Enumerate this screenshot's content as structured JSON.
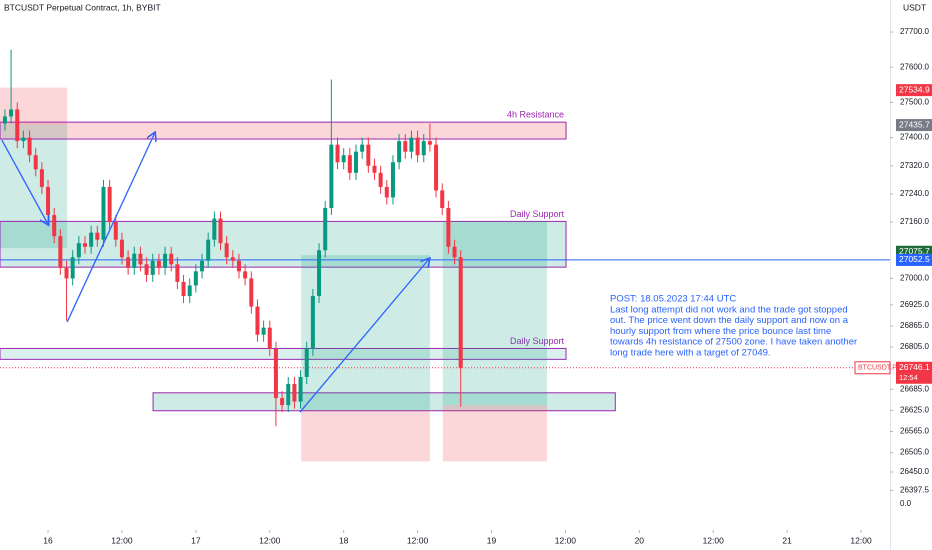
{
  "chart_data": {
    "type": "candlestick",
    "title": "BTCUSDT Perpetual Contract, 1h, BYBIT",
    "currency": "USDT",
    "up_color": "#089981",
    "down_color": "#f23645",
    "grid": false,
    "xlim": [
      16.2,
      160.7
    ],
    "ylim": [
      26342,
      27791
    ],
    "xticks": [
      {
        "value": 24,
        "label": "16"
      },
      {
        "value": 36,
        "label": "12:00"
      },
      {
        "value": 48,
        "label": "17"
      },
      {
        "value": 60,
        "label": "12:00"
      },
      {
        "value": 72,
        "label": "18"
      },
      {
        "value": 84,
        "label": "12:00"
      },
      {
        "value": 96,
        "label": "19"
      },
      {
        "value": 108,
        "label": "12:00"
      },
      {
        "value": 120,
        "label": "20"
      },
      {
        "value": 132,
        "label": "12:00"
      },
      {
        "value": 144,
        "label": "21"
      },
      {
        "value": 156,
        "label": "12:00"
      }
    ],
    "yticks": [
      {
        "value": 27700,
        "label": "27700.0"
      },
      {
        "value": 27600,
        "label": "27600.0"
      },
      {
        "value": 27500,
        "label": "27500.0"
      },
      {
        "value": 27400,
        "label": "27400.0"
      },
      {
        "value": 27320,
        "label": "27320.0"
      },
      {
        "value": 27240,
        "label": "27240.0"
      },
      {
        "value": 27160,
        "label": "27160.0"
      },
      {
        "value": 27000,
        "label": "27000.0"
      },
      {
        "value": 26925,
        "label": "26925.0"
      },
      {
        "value": 26865,
        "label": "26865.0"
      },
      {
        "value": 26805,
        "label": "26805.0"
      },
      {
        "value": 26685,
        "label": "26685.0"
      },
      {
        "value": 26625,
        "label": "26625.0"
      },
      {
        "value": 26565,
        "label": "26565.0"
      },
      {
        "value": 26505,
        "label": "26505.0"
      },
      {
        "value": 26450,
        "label": "26450.0"
      },
      26397.5
    ],
    "volume_tick_label": "0.0",
    "x": [
      17,
      18,
      19,
      20,
      21,
      22,
      23,
      24,
      25,
      26,
      27,
      28,
      29,
      30,
      31,
      32,
      33,
      34,
      35,
      36,
      37,
      38,
      39,
      40,
      41,
      42,
      43,
      44,
      45,
      46,
      47,
      48,
      49,
      50,
      51,
      52,
      53,
      54,
      55,
      56,
      57,
      58,
      59,
      60,
      61,
      62,
      63,
      64,
      65,
      66,
      67,
      68,
      69,
      70,
      71,
      72,
      73,
      74,
      75,
      76,
      77,
      78,
      79,
      80,
      81,
      82,
      83,
      84,
      85,
      86,
      87,
      88,
      89,
      90,
      91
    ],
    "open": [
      27440,
      27460,
      27480,
      27390,
      27400,
      27350,
      27310,
      27260,
      27180,
      27120,
      27030,
      27000,
      27060,
      27100,
      27090,
      27130,
      27110,
      27260,
      27160,
      27110,
      27060,
      27030,
      27070,
      27040,
      27010,
      27050,
      27030,
      27070,
      27040,
      26990,
      26950,
      26980,
      27020,
      27050,
      27110,
      27170,
      27100,
      27060,
      27050,
      27020,
      27000,
      26920,
      26840,
      26860,
      26800,
      26660,
      26640,
      26700,
      26650,
      26720,
      26800,
      26950,
      27080,
      27200,
      27380,
      27330,
      27350,
      27300,
      27360,
      27380,
      27320,
      27300,
      27260,
      27230,
      27330,
      27390,
      27360,
      27400,
      27350,
      27390,
      27380,
      27250,
      27200,
      27090,
      27060
    ],
    "high": [
      27480,
      27650,
      27500,
      27420,
      27420,
      27370,
      27330,
      27280,
      27200,
      27140,
      27050,
      27080,
      27120,
      27120,
      27150,
      27150,
      27280,
      27280,
      27180,
      27130,
      27080,
      27090,
      27090,
      27060,
      27070,
      27070,
      27090,
      27090,
      27060,
      27010,
      27000,
      27040,
      27070,
      27130,
      27190,
      27190,
      27120,
      27080,
      27070,
      27040,
      27020,
      26940,
      26880,
      26880,
      26820,
      26680,
      26720,
      26720,
      26740,
      26820,
      26970,
      27100,
      27220,
      27565,
      27400,
      27370,
      27370,
      27380,
      27400,
      27400,
      27340,
      27320,
      27280,
      27350,
      27410,
      27410,
      27420,
      27420,
      27410,
      27440,
      27400,
      27270,
      27220,
      27110,
      27080
    ],
    "low": [
      27420,
      27440,
      27370,
      27370,
      27330,
      27290,
      27240,
      27160,
      27100,
      27010,
      26880,
      26980,
      27040,
      27070,
      27070,
      27090,
      27090,
      27140,
      27090,
      27040,
      27010,
      27010,
      27020,
      26990,
      26990,
      27010,
      27010,
      27020,
      26970,
      26930,
      26930,
      26960,
      27000,
      27030,
      27090,
      27080,
      27040,
      27030,
      27000,
      26980,
      26900,
      26820,
      26820,
      26780,
      26580,
      26620,
      26620,
      26630,
      26630,
      26700,
      26780,
      26930,
      27060,
      27180,
      27310,
      27310,
      27280,
      27280,
      27340,
      27300,
      27280,
      27240,
      27210,
      27210,
      27310,
      27340,
      27340,
      27330,
      27330,
      27360,
      27230,
      27180,
      27070,
      27040,
      26635
    ],
    "close": [
      27460,
      27480,
      27390,
      27400,
      27350,
      27310,
      27260,
      27180,
      27120,
      27030,
      27000,
      27060,
      27100,
      27090,
      27130,
      27110,
      27260,
      27160,
      27110,
      27060,
      27030,
      27070,
      27040,
      27010,
      27050,
      27030,
      27070,
      27040,
      26990,
      26950,
      26980,
      27020,
      27050,
      27110,
      27170,
      27100,
      27060,
      27050,
      27020,
      27000,
      26920,
      26840,
      26860,
      26800,
      26660,
      26640,
      26700,
      26650,
      26720,
      26800,
      26950,
      27080,
      27200,
      27380,
      27330,
      27350,
      27300,
      27360,
      27380,
      27320,
      27300,
      27260,
      27230,
      27330,
      27390,
      27360,
      27400,
      27350,
      27390,
      27380,
      27250,
      27200,
      27090,
      27060,
      26746.1
    ],
    "zones": [
      {
        "x": [
          16.2,
          27.1
        ],
        "y": [
          27542,
          27438
        ],
        "fill": "rgba(242,54,69,0.2)"
      },
      {
        "x": [
          16.2,
          27.1
        ],
        "y": [
          27438,
          27086
        ],
        "fill": "rgba(8,153,129,0.2)"
      },
      {
        "x": [
          16.2,
          108.1
        ],
        "y": [
          27444,
          27396
        ],
        "fill": "rgba(242,54,69,0.2)",
        "border": "#9c27b0",
        "label": "4h Resistance"
      },
      {
        "x": [
          16.2,
          108.1
        ],
        "y": [
          27162,
          27032
        ],
        "fill": "rgba(8,153,129,0.2)",
        "border": "#9c27b0",
        "label": "Daily Support"
      },
      {
        "x": [
          16.2,
          108.1
        ],
        "y": [
          26801,
          26770
        ],
        "fill": "rgba(8,153,129,0.15)",
        "border": "#9c27b0",
        "label": "Daily Support"
      },
      {
        "x": [
          41.05,
          116.1
        ],
        "y": [
          26675,
          26624
        ],
        "fill": "rgba(8,153,129,0.2)",
        "border": "#9c27b0"
      },
      {
        "x": [
          65.1,
          86
        ],
        "y": [
          27066,
          26625
        ],
        "fill": "rgba(8,153,129,0.2)"
      },
      {
        "x": [
          65.1,
          86
        ],
        "y": [
          26625,
          26480
        ],
        "fill": "rgba(242,54,69,0.2)"
      },
      {
        "x": [
          88.1,
          105
        ],
        "y": [
          27162,
          26640
        ],
        "fill": "rgba(8,153,129,0.2)"
      },
      {
        "x": [
          88.1,
          105
        ],
        "y": [
          26640,
          26480
        ],
        "fill": "rgba(242,54,69,0.2)"
      }
    ],
    "arrows": [
      {
        "x": [
          16.5,
          24.1
        ],
        "y": [
          27393,
          27151
        ]
      },
      {
        "x": [
          27.1,
          41.4
        ],
        "y": [
          26876,
          27416
        ]
      },
      {
        "x": [
          64.9,
          86
        ],
        "y": [
          26620,
          27058
        ]
      }
    ],
    "horizontal_line": {
      "value": 27052.5,
      "color": "#2962ff"
    },
    "price_tags": [
      {
        "value": 27534.9,
        "color": "#f23645"
      },
      {
        "value": 27435.7,
        "color": "#787b86"
      },
      {
        "value": 27075.7,
        "color": "#1e6b3a"
      },
      {
        "value": 27052.5,
        "color": "#2962ff"
      }
    ],
    "current_price": {
      "symbol": "BTCUSDT.P",
      "value": 26746.1,
      "countdown": "12:54",
      "color": "#f23645"
    },
    "annotation": [
      "POST: 18.05.2023 17:44 UTC",
      "Last long attempt did not work and the trade got stopped",
      "out. The price went down the daily support and now on a",
      "hourly support from where the price bounce last time",
      "towards 4h resistance of 27500 zone. I have taken another",
      "long trade here with a target of 27049."
    ]
  }
}
